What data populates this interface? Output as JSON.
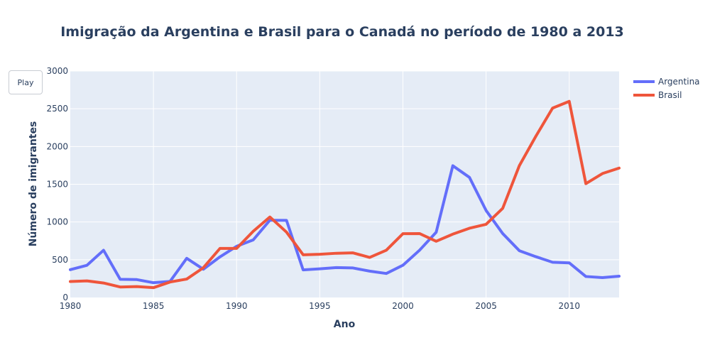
{
  "controls": {
    "play_label": "Play"
  },
  "colors": {
    "plot_bg": "#e5ecf6",
    "grid": "#ffffff",
    "text": "#2a3f5f"
  },
  "chart_data": {
    "type": "line",
    "title": "Imigração da Argentina e Brasil para o Canadá no período de 1980 a 2013",
    "xlabel": "Ano",
    "ylabel": "Número de imigrantes",
    "xlim": [
      1980,
      2013
    ],
    "ylim": [
      0,
      3000
    ],
    "xticks": [
      1980,
      1985,
      1990,
      1995,
      2000,
      2005,
      2010
    ],
    "xtick_labels": [
      "1980",
      "1985",
      "1990",
      "1995",
      "2000",
      "2005",
      "2010"
    ],
    "yticks": [
      0,
      500,
      1000,
      1500,
      2000,
      2500,
      3000
    ],
    "ytick_labels": [
      "0",
      "500",
      "1000",
      "1500",
      "2000",
      "2500",
      "3000"
    ],
    "grid": true,
    "legend_position": "top-right",
    "x": [
      1980,
      1981,
      1982,
      1983,
      1984,
      1985,
      1986,
      1987,
      1988,
      1989,
      1990,
      1991,
      1992,
      1993,
      1994,
      1995,
      1996,
      1997,
      1998,
      1999,
      2000,
      2001,
      2002,
      2003,
      2004,
      2005,
      2006,
      2007,
      2008,
      2009,
      2010,
      2011,
      2012,
      2013
    ],
    "series": [
      {
        "name": "Argentina",
        "color": "#636efa",
        "values": [
          368,
          426,
          626,
          241,
          237,
          196,
          213,
          519,
          374,
          538,
          678,
          763,
          1023,
          1022,
          366,
          380,
          396,
          391,
          349,
          318,
          427,
          626,
          864,
          1745,
          1591,
          1153,
          847,
          620,
          540,
          467,
          459,
          278,
          263,
          282
        ]
      },
      {
        "name": "Brasil",
        "color": "#ef553b",
        "values": [
          211,
          220,
          192,
          139,
          145,
          130,
          205,
          244,
          394,
          650,
          650,
          877,
          1066,
          866,
          566,
          572,
          586,
          591,
          531,
          626,
          845,
          847,
          745,
          839,
          917,
          969,
          1181,
          1746,
          2138,
          2509,
          2598,
          1508,
          1642,
          1714
        ]
      }
    ]
  }
}
